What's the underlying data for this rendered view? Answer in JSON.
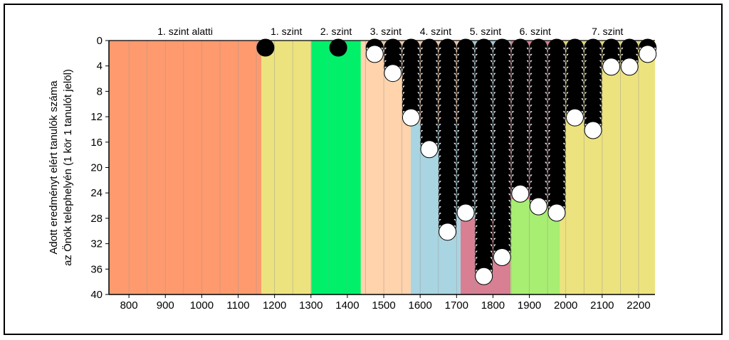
{
  "chart_data": {
    "type": "scatter",
    "title": "",
    "ylabel_line1": "Adott eredményt elért tanulók száma",
    "ylabel_line2": "az Önök telephelyén (1 kör 1 tanulót jelöl)",
    "xlim": [
      745,
      2245
    ],
    "ylim": [
      0,
      40
    ],
    "y_inverted": true,
    "x_ticks": [
      800,
      900,
      1000,
      1100,
      1200,
      1300,
      1400,
      1500,
      1600,
      1700,
      1800,
      1900,
      2000,
      2100,
      2200
    ],
    "y_ticks": [
      0,
      4,
      8,
      12,
      16,
      20,
      24,
      28,
      32,
      36,
      40
    ],
    "grid_x": [
      800,
      850,
      900,
      950,
      1000,
      1050,
      1100,
      1150,
      1200,
      1250,
      1300,
      1350,
      1400,
      1450,
      1500,
      1550,
      1600,
      1650,
      1700,
      1750,
      1800,
      1850,
      1900,
      1950,
      2000,
      2050,
      2100,
      2150,
      2200
    ],
    "levels": [
      {
        "label": "1. szint alatti",
        "x0": 745,
        "x1": 1164,
        "ytop": 0,
        "color": "#FF9A6E"
      },
      {
        "label": "1. szint",
        "x0": 1164,
        "x1": 1301,
        "ytop": 0,
        "color": "#EDE37E"
      },
      {
        "label": "2. szint",
        "x0": 1301,
        "x1": 1437,
        "ytop": 0,
        "color": "#00F06A"
      },
      {
        "label": "3. szint",
        "x0": 1437,
        "x1": 1574,
        "ytop": 0,
        "color": "#FFD3AC"
      },
      {
        "label": "4. szint",
        "x0": 1574,
        "x1": 1711,
        "ytop": 0,
        "color": "#A9D5E2"
      },
      {
        "label": "5. szint",
        "x0": 1711,
        "x1": 1848,
        "ytop": 0,
        "color": "#D97F93"
      },
      {
        "label": "6. szint",
        "x0": 1848,
        "x1": 1984,
        "ytop": 0,
        "color": "#A8EE72"
      },
      {
        "label": "7. szint",
        "x0": 1984,
        "x1": 2245,
        "ytop": 0,
        "color": "#EDE37E"
      }
    ],
    "upper_fills": [
      {
        "x0": 1574,
        "x1": 1711,
        "y1": 13,
        "color": "#FFD3AC"
      },
      {
        "x0": 1711,
        "x1": 1848,
        "y1": 28,
        "color": "#A9D5E2"
      },
      {
        "x0": 1848,
        "x1": 1984,
        "y1": 25,
        "color": "#D97F93"
      }
    ],
    "columns": [
      {
        "x": 1175,
        "count": 1
      },
      {
        "x": 1375,
        "count": 1
      },
      {
        "x": 1475,
        "count": 2
      },
      {
        "x": 1525,
        "count": 5
      },
      {
        "x": 1575,
        "count": 12
      },
      {
        "x": 1625,
        "count": 17
      },
      {
        "x": 1675,
        "count": 30
      },
      {
        "x": 1725,
        "count": 27
      },
      {
        "x": 1775,
        "count": 37
      },
      {
        "x": 1825,
        "count": 34
      },
      {
        "x": 1875,
        "count": 24
      },
      {
        "x": 1925,
        "count": 26
      },
      {
        "x": 1975,
        "count": 27
      },
      {
        "x": 2025,
        "count": 12
      },
      {
        "x": 2075,
        "count": 14
      },
      {
        "x": 2125,
        "count": 4
      },
      {
        "x": 2175,
        "count": 4
      },
      {
        "x": 2225,
        "count": 2
      }
    ],
    "grid": true,
    "legend": "none"
  }
}
